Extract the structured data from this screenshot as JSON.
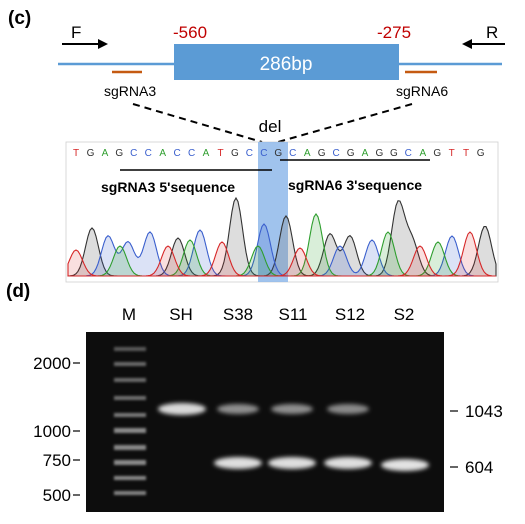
{
  "panel_c": {
    "label": "(c)",
    "forward_primer": "F",
    "reverse_primer": "R",
    "pos_left": "-560",
    "pos_right": "-275",
    "deletion_size": "286bp",
    "sgrna_left": "sgRNA3",
    "sgrna_right": "sgRNA6",
    "del_label": "del",
    "sequence": [
      "T",
      "G",
      "A",
      "G",
      "C",
      "C",
      "A",
      "C",
      "C",
      "A",
      "T",
      "G",
      "C",
      "C",
      "G",
      "C",
      "A",
      "G",
      "C",
      "G",
      "A",
      "G",
      "G",
      "C",
      "A",
      "G",
      "T",
      "T",
      "G"
    ],
    "seq_left_label": "sgRNA3 5'sequence",
    "seq_right_label": "sgRNA6 3'sequence",
    "base_colors": {
      "A": "#2e9e2e",
      "C": "#3a5fcd",
      "G": "#333333",
      "T": "#d62728"
    },
    "highlight_color": "#8fb9ea",
    "red_text_color": "#c00000",
    "blue_line_color": "#5b9bd5",
    "box_color": "#5b9bd5",
    "sgrna_bar_color": "#c55a11"
  },
  "panel_d": {
    "label": "(d)",
    "lanes": [
      "M",
      "SH",
      "S38",
      "S11",
      "S12",
      "S2"
    ],
    "ladder_marks": [
      "2000",
      "1000",
      "750",
      "500"
    ],
    "band_marks": [
      "1043",
      "604"
    ],
    "gel_background": "#0d0d0d"
  }
}
